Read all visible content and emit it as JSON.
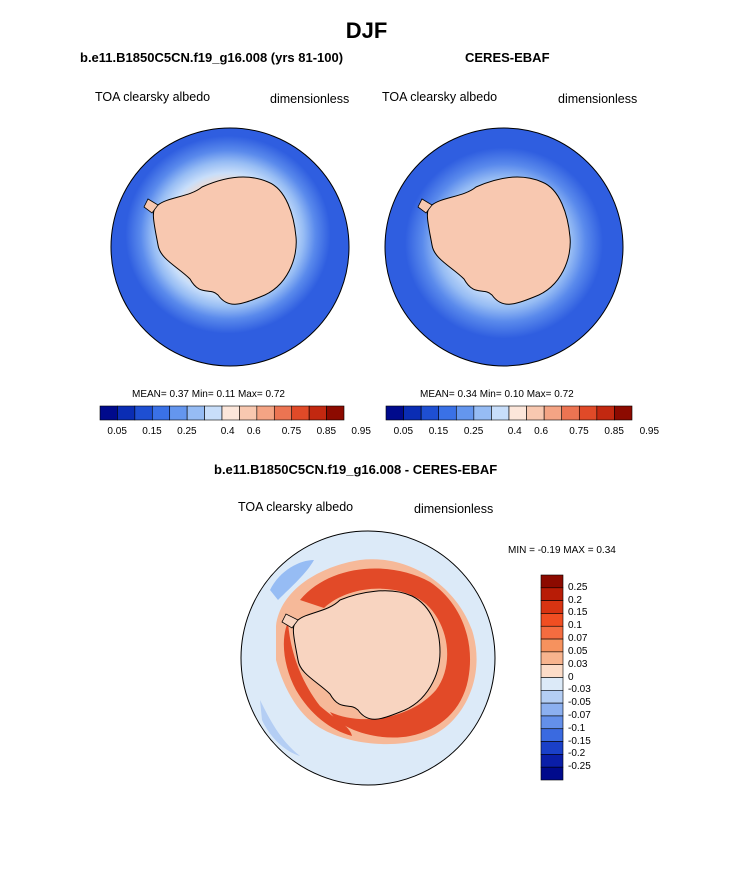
{
  "figure": {
    "title": "DJF"
  },
  "panels": [
    {
      "title": "b.e11.B1850C5CN.f19_g16.008 (yrs 81-100)",
      "left_label": "TOA clearsky albedo",
      "right_label": "dimensionless",
      "stats": "MEAN=   0.37  Min=   0.11  Max=   0.72"
    },
    {
      "title": "CERES-EBAF",
      "left_label": "TOA clearsky albedo",
      "right_label": "dimensionless",
      "stats": "MEAN=   0.34  Min=   0.10  Max=   0.72"
    },
    {
      "title": "b.e11.B1850C5CN.f19_g16.008 - CERES-EBAF",
      "left_label": "TOA clearsky albedo",
      "right_label": "dimensionless",
      "stats": "MIN =  -0.19 MAX =   0.34"
    }
  ],
  "colorbar_top": {
    "labels": [
      "0.05",
      "0.15",
      "0.25",
      "0.4",
      "0.6",
      "0.75",
      "0.85",
      "0.95"
    ],
    "colors": [
      "#000a8c",
      "#0a2db4",
      "#1e4fd2",
      "#3a71e6",
      "#6496ee",
      "#96bcf4",
      "#c8defa",
      "#fce6da",
      "#f8c8b0",
      "#f4a484",
      "#ec7452",
      "#e04a28",
      "#c22810",
      "#8c0a00"
    ]
  },
  "colorbar_diff": {
    "labels": [
      "0.25",
      "0.2",
      "0.15",
      "0.1",
      "0.07",
      "0.05",
      "0.03",
      "0",
      "-0.03",
      "-0.05",
      "-0.07",
      "-0.1",
      "-0.15",
      "-0.2",
      "-0.25"
    ],
    "colors": [
      "#8c0a00",
      "#b81c06",
      "#d83412",
      "#f04e22",
      "#f46c40",
      "#f6925e",
      "#f8b48e",
      "#fcdcc8",
      "#dceaf8",
      "#b4cef4",
      "#8cb0f0",
      "#6490ea",
      "#3a6ae0",
      "#1a40c8",
      "#0a1ea8",
      "#000a8c"
    ]
  },
  "colors": {
    "ocean_blue": "#2f5ee0",
    "land": "#f8c8b0",
    "diff_neutral": "#dceaf8",
    "diff_red": "#e24a28"
  }
}
